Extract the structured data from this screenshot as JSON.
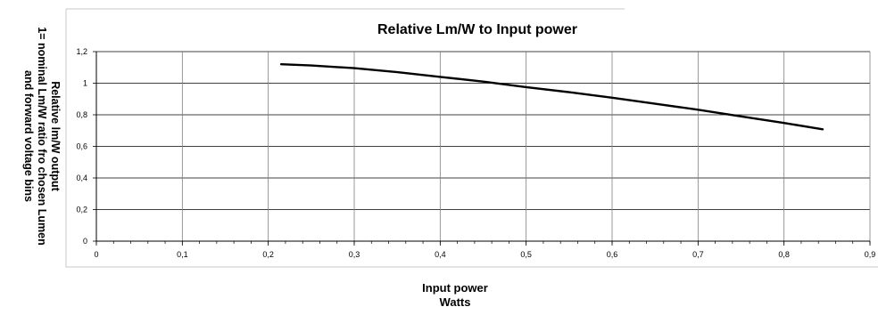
{
  "chart_data": {
    "type": "line",
    "title": "Relative Lm/W to Input power",
    "xlabel_lines": [
      "Input power",
      "Watts"
    ],
    "ylabel_lines": [
      "Relative lm/W output",
      "1= nominal Lm/W ratio fro chosen Lumen",
      "and forward voltage bins"
    ],
    "xlim": [
      0,
      0.9
    ],
    "ylim": [
      0,
      1.2
    ],
    "x_ticks": [
      0,
      0.1,
      0.2,
      0.3,
      0.4,
      0.5,
      0.6,
      0.7,
      0.8,
      0.9
    ],
    "x_tick_labels": [
      "0",
      "0,1",
      "0,2",
      "0,3",
      "0,4",
      "0,5",
      "0,6",
      "0,7",
      "0,8",
      "0,9"
    ],
    "y_ticks": [
      0,
      0.2,
      0.4,
      0.6,
      0.8,
      1,
      1.2
    ],
    "y_tick_labels": [
      "0",
      "0,2",
      "0,4",
      "0,6",
      "0,8",
      "1",
      "1,2"
    ],
    "grid": true,
    "legend": "none",
    "series": [
      {
        "x": [
          0.215,
          0.25,
          0.3,
          0.35,
          0.4,
          0.45,
          0.5,
          0.55,
          0.6,
          0.65,
          0.7,
          0.75,
          0.8,
          0.845
        ],
        "y": [
          1.12,
          1.112,
          1.095,
          1.07,
          1.04,
          1.01,
          0.975,
          0.943,
          0.908,
          0.87,
          0.832,
          0.79,
          0.748,
          0.708
        ],
        "color": "#000000"
      }
    ]
  }
}
